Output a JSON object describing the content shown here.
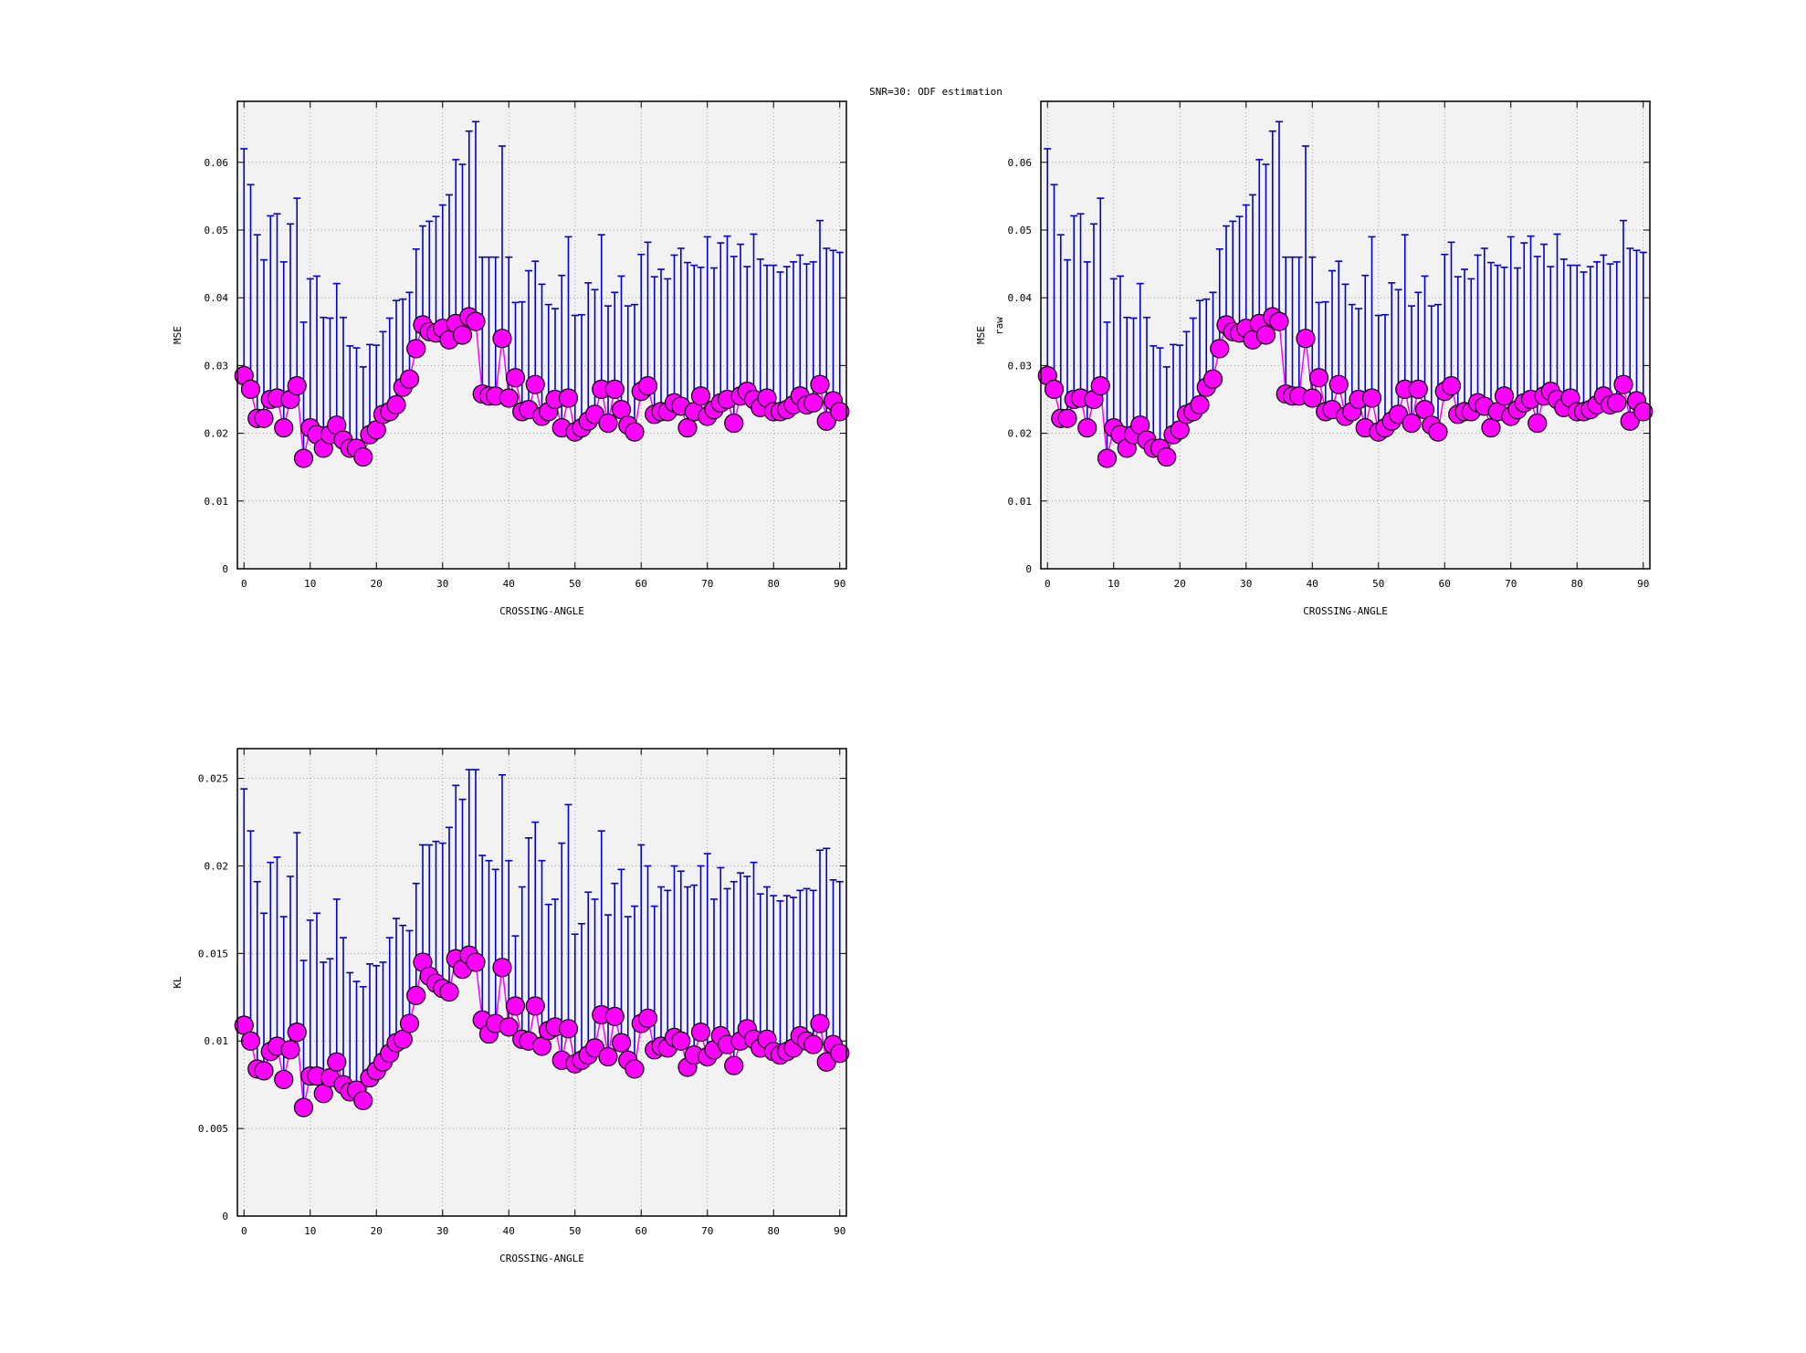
{
  "title": "SNR=30: ODF estimation",
  "colors": {
    "errorbar": "#0000cc",
    "marker": "#ff00ff",
    "marker_edge": "#000000",
    "plot_bg": "#f2f2f2",
    "grid": "#888888"
  },
  "chart_data": [
    {
      "type": "scatter",
      "xlabel": "CROSSING-ANGLE",
      "ylabel": "MSE",
      "ylabel_sub": "",
      "xlim": [
        -1,
        91
      ],
      "ylim": [
        0,
        0.069
      ],
      "xticks": [
        0,
        10,
        20,
        30,
        40,
        50,
        60,
        70,
        80,
        90
      ],
      "xtick_labels": [
        "0",
        "10",
        "20",
        "30",
        "40",
        "50",
        "60",
        "70",
        "80",
        "90"
      ],
      "yticks": [
        0,
        0.01,
        0.02,
        0.03,
        0.04,
        0.05,
        0.06
      ],
      "ytick_labels": [
        "0",
        "0.01",
        "0.02",
        "0.03",
        "0.04",
        "0.05",
        "0.06"
      ],
      "grid": true,
      "series": [
        {
          "x": [
            0,
            1,
            2,
            3,
            4,
            5,
            6,
            7,
            8,
            9,
            10,
            11,
            12,
            13,
            14,
            15,
            16,
            17,
            18,
            19,
            20,
            21,
            22,
            23,
            24,
            25,
            26,
            27,
            28,
            29,
            30,
            31,
            32,
            33,
            34,
            35,
            36,
            37,
            38,
            39,
            40,
            41,
            42,
            43,
            44,
            45,
            46,
            47,
            48,
            49,
            50,
            51,
            52,
            53,
            54,
            55,
            56,
            57,
            58,
            59,
            60,
            61,
            62,
            63,
            64,
            65,
            66,
            67,
            68,
            69,
            70,
            71,
            72,
            73,
            74,
            75,
            76,
            77,
            78,
            79,
            80,
            81,
            82,
            83,
            84,
            85,
            86,
            87,
            88,
            89,
            90
          ],
          "y": [
            0.0285,
            0.0265,
            0.0222,
            0.0222,
            0.025,
            0.0252,
            0.0208,
            0.025,
            0.027,
            0.0163,
            0.0208,
            0.0198,
            0.0178,
            0.0198,
            0.0212,
            0.019,
            0.0178,
            0.0178,
            0.0165,
            0.0198,
            0.0205,
            0.0228,
            0.0232,
            0.0242,
            0.0268,
            0.028,
            0.0325,
            0.036,
            0.035,
            0.0348,
            0.0355,
            0.0338,
            0.0362,
            0.0345,
            0.0372,
            0.0365,
            0.0258,
            0.0255,
            0.0255,
            0.034,
            0.0252,
            0.0282,
            0.0232,
            0.0235,
            0.0272,
            0.0225,
            0.0232,
            0.025,
            0.0208,
            0.0252,
            0.0202,
            0.0208,
            0.0218,
            0.0228,
            0.0265,
            0.0215,
            0.0265,
            0.0235,
            0.0212,
            0.0202,
            0.0262,
            0.027,
            0.0228,
            0.0232,
            0.0232,
            0.0245,
            0.024,
            0.0208,
            0.0232,
            0.0255,
            0.0225,
            0.0235,
            0.0245,
            0.025,
            0.0215,
            0.0255,
            0.0262,
            0.025,
            0.0238,
            0.0252,
            0.0232,
            0.0232,
            0.0235,
            0.0242,
            0.0255,
            0.0242,
            0.0245,
            0.0272,
            0.0218,
            0.0248,
            0.0232
          ],
          "yerr": [
            0.0335,
            0.0302,
            0.0271,
            0.0234,
            0.0271,
            0.0272,
            0.0245,
            0.0259,
            0.0277,
            0.0201,
            0.022,
            0.0234,
            0.0193,
            0.0172,
            0.0209,
            0.0181,
            0.0151,
            0.0148,
            0.0133,
            0.0133,
            0.0125,
            0.0122,
            0.0138,
            0.0154,
            0.013,
            0.0128,
            0.0147,
            0.0146,
            0.0163,
            0.0172,
            0.0182,
            0.0214,
            0.0242,
            0.0252,
            0.0274,
            0.0295,
            0.0202,
            0.0205,
            0.0205,
            0.0284,
            0.0208,
            0.0111,
            0.0162,
            0.0205,
            0.0182,
            0.0195,
            0.0158,
            0.0134,
            0.0225,
            0.0238,
            0.0172,
            0.0167,
            0.0204,
            0.0184,
            0.0228,
            0.0173,
            0.0143,
            0.0197,
            0.0176,
            0.0188,
            0.0202,
            0.0212,
            0.0203,
            0.021,
            0.0196,
            0.0218,
            0.0233,
            0.0244,
            0.0216,
            0.019,
            0.0265,
            0.0209,
            0.0236,
            0.0241,
            0.0246,
            0.0224,
            0.0184,
            0.0244,
            0.0219,
            0.0196,
            0.0216,
            0.0206,
            0.0211,
            0.0211,
            0.0208,
            0.0208,
            0.0208,
            0.0242,
            0.0255,
            0.0222,
            0.0235
          ]
        }
      ]
    },
    {
      "type": "scatter",
      "xlabel": "CROSSING-ANGLE",
      "ylabel": "MSE",
      "ylabel_sub": "raw",
      "xlim": [
        -1,
        91
      ],
      "ylim": [
        0,
        0.069
      ],
      "xticks": [
        0,
        10,
        20,
        30,
        40,
        50,
        60,
        70,
        80,
        90
      ],
      "xtick_labels": [
        "0",
        "10",
        "20",
        "30",
        "40",
        "50",
        "60",
        "70",
        "80",
        "90"
      ],
      "yticks": [
        0,
        0.01,
        0.02,
        0.03,
        0.04,
        0.05,
        0.06
      ],
      "ytick_labels": [
        "0",
        "0.01",
        "0.02",
        "0.03",
        "0.04",
        "0.05",
        "0.06"
      ],
      "grid": true,
      "series": [
        {
          "x": [
            0,
            1,
            2,
            3,
            4,
            5,
            6,
            7,
            8,
            9,
            10,
            11,
            12,
            13,
            14,
            15,
            16,
            17,
            18,
            19,
            20,
            21,
            22,
            23,
            24,
            25,
            26,
            27,
            28,
            29,
            30,
            31,
            32,
            33,
            34,
            35,
            36,
            37,
            38,
            39,
            40,
            41,
            42,
            43,
            44,
            45,
            46,
            47,
            48,
            49,
            50,
            51,
            52,
            53,
            54,
            55,
            56,
            57,
            58,
            59,
            60,
            61,
            62,
            63,
            64,
            65,
            66,
            67,
            68,
            69,
            70,
            71,
            72,
            73,
            74,
            75,
            76,
            77,
            78,
            79,
            80,
            81,
            82,
            83,
            84,
            85,
            86,
            87,
            88,
            89,
            90
          ],
          "y": [
            0.0285,
            0.0265,
            0.0222,
            0.0222,
            0.025,
            0.0252,
            0.0208,
            0.025,
            0.027,
            0.0163,
            0.0208,
            0.0198,
            0.0178,
            0.0198,
            0.0212,
            0.019,
            0.0178,
            0.0178,
            0.0165,
            0.0198,
            0.0205,
            0.0228,
            0.0232,
            0.0242,
            0.0268,
            0.028,
            0.0325,
            0.036,
            0.035,
            0.0348,
            0.0355,
            0.0338,
            0.0362,
            0.0345,
            0.0372,
            0.0365,
            0.0258,
            0.0255,
            0.0255,
            0.034,
            0.0252,
            0.0282,
            0.0232,
            0.0235,
            0.0272,
            0.0225,
            0.0232,
            0.025,
            0.0208,
            0.0252,
            0.0202,
            0.0208,
            0.0218,
            0.0228,
            0.0265,
            0.0215,
            0.0265,
            0.0235,
            0.0212,
            0.0202,
            0.0262,
            0.027,
            0.0228,
            0.0232,
            0.0232,
            0.0245,
            0.024,
            0.0208,
            0.0232,
            0.0255,
            0.0225,
            0.0235,
            0.0245,
            0.025,
            0.0215,
            0.0255,
            0.0262,
            0.025,
            0.0238,
            0.0252,
            0.0232,
            0.0232,
            0.0235,
            0.0242,
            0.0255,
            0.0242,
            0.0245,
            0.0272,
            0.0218,
            0.0248,
            0.0232
          ],
          "yerr": [
            0.0335,
            0.0302,
            0.0271,
            0.0234,
            0.0271,
            0.0272,
            0.0245,
            0.0259,
            0.0277,
            0.0201,
            0.022,
            0.0234,
            0.0193,
            0.0172,
            0.0209,
            0.0181,
            0.0151,
            0.0148,
            0.0133,
            0.0133,
            0.0125,
            0.0122,
            0.0138,
            0.0154,
            0.013,
            0.0128,
            0.0147,
            0.0146,
            0.0163,
            0.0172,
            0.0182,
            0.0214,
            0.0242,
            0.0252,
            0.0274,
            0.0295,
            0.0202,
            0.0205,
            0.0205,
            0.0284,
            0.0208,
            0.0111,
            0.0162,
            0.0205,
            0.0182,
            0.0195,
            0.0158,
            0.0134,
            0.0225,
            0.0238,
            0.0172,
            0.0167,
            0.0204,
            0.0184,
            0.0228,
            0.0173,
            0.0143,
            0.0197,
            0.0176,
            0.0188,
            0.0202,
            0.0212,
            0.0203,
            0.021,
            0.0196,
            0.0218,
            0.0233,
            0.0244,
            0.0216,
            0.019,
            0.0265,
            0.0209,
            0.0236,
            0.0241,
            0.0246,
            0.0224,
            0.0184,
            0.0244,
            0.0219,
            0.0196,
            0.0216,
            0.0206,
            0.0211,
            0.0211,
            0.0208,
            0.0208,
            0.0208,
            0.0242,
            0.0255,
            0.0222,
            0.0235
          ]
        }
      ]
    },
    {
      "type": "scatter",
      "xlabel": "CROSSING-ANGLE",
      "ylabel": "KL",
      "ylabel_sub": "",
      "xlim": [
        -1,
        91
      ],
      "ylim": [
        0,
        0.0267
      ],
      "xticks": [
        0,
        10,
        20,
        30,
        40,
        50,
        60,
        70,
        80,
        90
      ],
      "xtick_labels": [
        "0",
        "10",
        "20",
        "30",
        "40",
        "50",
        "60",
        "70",
        "80",
        "90"
      ],
      "yticks": [
        0,
        0.005,
        0.01,
        0.015,
        0.02,
        0.025
      ],
      "ytick_labels": [
        "0",
        "0.005",
        "0.01",
        "0.015",
        "0.02",
        "0.025"
      ],
      "grid": true,
      "series": [
        {
          "x": [
            0,
            1,
            2,
            3,
            4,
            5,
            6,
            7,
            8,
            9,
            10,
            11,
            12,
            13,
            14,
            15,
            16,
            17,
            18,
            19,
            20,
            21,
            22,
            23,
            24,
            25,
            26,
            27,
            28,
            29,
            30,
            31,
            32,
            33,
            34,
            35,
            36,
            37,
            38,
            39,
            40,
            41,
            42,
            43,
            44,
            45,
            46,
            47,
            48,
            49,
            50,
            51,
            52,
            53,
            54,
            55,
            56,
            57,
            58,
            59,
            60,
            61,
            62,
            63,
            64,
            65,
            66,
            67,
            68,
            69,
            70,
            71,
            72,
            73,
            74,
            75,
            76,
            77,
            78,
            79,
            80,
            81,
            82,
            83,
            84,
            85,
            86,
            87,
            88,
            89,
            90
          ],
          "y": [
            0.0109,
            0.01,
            0.0084,
            0.0083,
            0.0094,
            0.0097,
            0.0078,
            0.0095,
            0.0105,
            0.0062,
            0.008,
            0.008,
            0.007,
            0.0079,
            0.0088,
            0.0075,
            0.0071,
            0.0072,
            0.0066,
            0.0079,
            0.0083,
            0.0088,
            0.0093,
            0.0099,
            0.0101,
            0.011,
            0.0126,
            0.0145,
            0.0137,
            0.0133,
            0.013,
            0.0128,
            0.0147,
            0.0141,
            0.0149,
            0.0145,
            0.0112,
            0.0104,
            0.011,
            0.0142,
            0.0108,
            0.012,
            0.0101,
            0.01,
            0.012,
            0.0097,
            0.0106,
            0.0108,
            0.0089,
            0.0107,
            0.0087,
            0.0089,
            0.0092,
            0.0096,
            0.0115,
            0.0091,
            0.0114,
            0.0099,
            0.0089,
            0.0084,
            0.011,
            0.0113,
            0.0095,
            0.0097,
            0.0096,
            0.0102,
            0.01,
            0.0085,
            0.0092,
            0.0105,
            0.0091,
            0.0095,
            0.0103,
            0.0098,
            0.0086,
            0.01,
            0.0107,
            0.0101,
            0.0096,
            0.0101,
            0.0094,
            0.0092,
            0.0094,
            0.0096,
            0.0103,
            0.01,
            0.0098,
            0.011,
            0.0088,
            0.0098,
            0.0093
          ],
          "yerr": [
            0.0135,
            0.012,
            0.0107,
            0.009,
            0.0108,
            0.0108,
            0.0093,
            0.0099,
            0.0114,
            0.0084,
            0.0089,
            0.0093,
            0.0075,
            0.0068,
            0.0093,
            0.0084,
            0.0068,
            0.0062,
            0.0065,
            0.0065,
            0.006,
            0.0057,
            0.0066,
            0.0071,
            0.0065,
            0.0053,
            0.0064,
            0.0067,
            0.0075,
            0.0081,
            0.0083,
            0.0094,
            0.0099,
            0.0097,
            0.0106,
            0.011,
            0.0094,
            0.0099,
            0.0088,
            0.011,
            0.0095,
            0.004,
            0.0087,
            0.0116,
            0.0105,
            0.0106,
            0.0072,
            0.0073,
            0.0124,
            0.0128,
            0.0074,
            0.0078,
            0.0093,
            0.0085,
            0.0105,
            0.0081,
            0.0076,
            0.0099,
            0.0082,
            0.0093,
            0.0102,
            0.0087,
            0.0082,
            0.0091,
            0.009,
            0.0098,
            0.0097,
            0.0103,
            0.0097,
            0.0095,
            0.0116,
            0.0086,
            0.0096,
            0.0089,
            0.0105,
            0.0096,
            0.0087,
            0.0101,
            0.0088,
            0.0087,
            0.0089,
            0.0088,
            0.0089,
            0.0086,
            0.0083,
            0.0087,
            0.0088,
            0.0099,
            0.0122,
            0.0094,
            0.0098
          ]
        }
      ]
    }
  ]
}
